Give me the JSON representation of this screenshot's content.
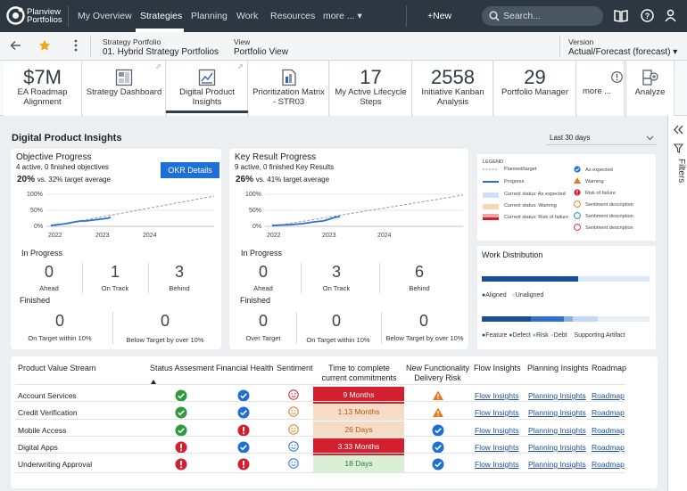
{
  "topbar": {
    "brand_line1": "Planview",
    "brand_line2": "Portfolios",
    "nav": [
      "My Overview",
      "Strategies",
      "Planning",
      "Work",
      "Resources",
      "more ... ▾"
    ],
    "new_label": "+New",
    "search_placeholder": "Search..."
  },
  "crumb": {
    "sp_label": "Strategy Portfolio",
    "sp_value": "01. Hybrid Strategy Portfolios",
    "view_label": "View",
    "view_value": "Portfolio View",
    "version_label": "Version",
    "version_value": "Actual/Forecast (forecast) ▾"
  },
  "tiles": [
    {
      "big": "$7M",
      "label": "EA Roadmap Alignment"
    },
    {
      "label": "Strategy Dashboard"
    },
    {
      "label": "Digital Product Insights"
    },
    {
      "label": "Prioritization Matrix - STR03"
    },
    {
      "big": "17",
      "label": "My Active Lifecycle Steps"
    },
    {
      "big": "2558",
      "label": "Initiative Kanban Analysis"
    },
    {
      "big": "29",
      "label": "Portfolio Manager"
    },
    {
      "label": "more ..."
    },
    {
      "label": "Analyze"
    }
  ],
  "page": {
    "title": "Digital Product Insights",
    "period": "Last 30 days"
  },
  "filters_label": "Filters",
  "objective": {
    "title": "Objective Progress",
    "subtitle": "4 active, 0 finished objectives",
    "pct": "20%",
    "vs": "vs. 32% target average",
    "button": "OKR Details",
    "axis_y": [
      "100%",
      "50%",
      "0%"
    ],
    "axis_x": [
      "2022",
      "2023",
      "2024"
    ],
    "in_progress_label": "In Progress",
    "in_progress": [
      {
        "n": "0",
        "l": "Ahead"
      },
      {
        "n": "1",
        "l": "On Track"
      },
      {
        "n": "3",
        "l": "Behind"
      }
    ],
    "finished_label": "Finished",
    "finished": [
      {
        "n": "0",
        "l": "On Target within 10%"
      },
      {
        "n": "0",
        "l": "Below Target by over 10%"
      }
    ]
  },
  "keyresult": {
    "title": "Key Result Progress",
    "subtitle": "9 active, 0 finished Key Results",
    "pct": "26%",
    "vs": "vs. 41% target average",
    "axis_y": [
      "100%",
      "50%",
      "0%"
    ],
    "axis_x": [
      "2022",
      "2023",
      "2024"
    ],
    "in_progress_label": "In Progress",
    "in_progress": [
      {
        "n": "0",
        "l": "Ahead"
      },
      {
        "n": "3",
        "l": "On Track"
      },
      {
        "n": "6",
        "l": "Behind"
      }
    ],
    "finished_label": "Finished",
    "finished": [
      {
        "n": "0",
        "l": "Over Target"
      },
      {
        "n": "0",
        "l": "On Target within 10%"
      },
      {
        "n": "0",
        "l": "Below Target by over 10%"
      }
    ]
  },
  "legend": {
    "title": "LEGEND",
    "left": [
      "Planned/target",
      "Progress",
      "Current status: As expected",
      "Current status: Warning",
      "Current status: Risk of failure"
    ],
    "right": [
      "As expected",
      "Warning",
      "Risk of failure",
      "Sentiment description",
      "Sentiment description",
      "Sentiment description"
    ]
  },
  "work": {
    "title": "Work Distribution",
    "bar1_labels": [
      "Aligned",
      "Unaligned"
    ],
    "bar2_labels": [
      "Feature",
      "Defect",
      "Risk",
      "Debt",
      "Supporting Artifact"
    ]
  },
  "table": {
    "headers": [
      "Product Value Stream",
      "Status Assesment",
      "Financial Health",
      "Sentiment",
      "Time to complete current commitments",
      "New Functionality Delivery Risk",
      "Flow Insights",
      "Planning Insights",
      "Roadmap"
    ],
    "rows": [
      {
        "name": "Account Services",
        "time": "9 Months",
        "flow": "Flow Insights",
        "plan": "Planning Insights",
        "road": "Roadmap"
      },
      {
        "name": "Credit Verification",
        "time": "1.13 Months",
        "flow": "Flow Insights",
        "plan": "Planning Insights",
        "road": "Roadmap"
      },
      {
        "name": "Mobile Access",
        "time": "26 Days",
        "flow": "Flow Insights",
        "plan": "Planning Insights",
        "road": "Roadmap"
      },
      {
        "name": "Digital Apps",
        "time": "3.33 Months",
        "flow": "Flow Insights",
        "plan": "Planning Insights",
        "road": "Roadmap"
      },
      {
        "name": "Underwriting Approval",
        "time": "18 Days",
        "flow": "Flow Insights",
        "plan": "Planning Insights",
        "road": "Roadmap"
      }
    ]
  },
  "colors": {
    "red": "#d2202e",
    "green": "#2e9a3c",
    "blue": "#1f6fd6",
    "orange": "#e17a1b",
    "topbar": "#2d3742"
  }
}
